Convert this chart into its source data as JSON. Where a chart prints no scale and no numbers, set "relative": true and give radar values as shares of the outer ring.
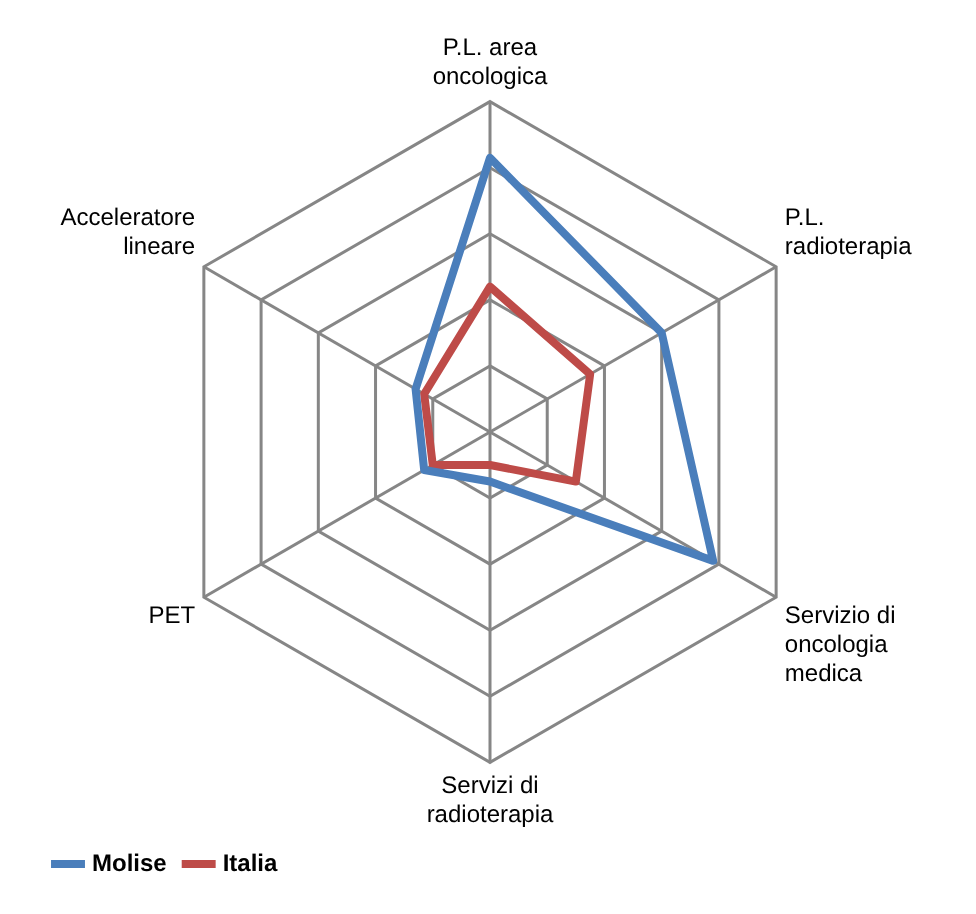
{
  "chart_data": {
    "type": "radar",
    "relative": true,
    "categories": [
      "P.L. area oncologica",
      "P.L. radioterapia",
      "Servizio di oncologia medica",
      "Servizi di radioterapia",
      "PET",
      "Acceleratore lineare"
    ],
    "series": [
      {
        "name": "Molise",
        "color": "#4a7ebb",
        "values": [
          0.83,
          0.6,
          0.78,
          0.15,
          0.23,
          0.26
        ]
      },
      {
        "name": "Italia",
        "color": "#be4b48",
        "values": [
          0.44,
          0.35,
          0.3,
          0.1,
          0.2,
          0.23
        ]
      }
    ],
    "grid": true,
    "legend": "bottom left",
    "marker": "none"
  }
}
